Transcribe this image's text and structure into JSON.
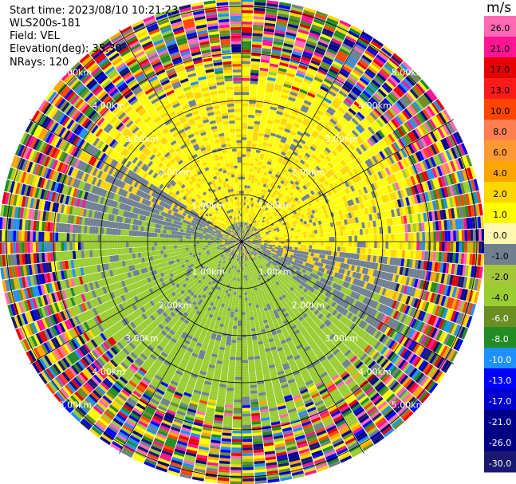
{
  "info": {
    "start_time": "Start time: 2023/08/10 10:21:23",
    "instrument": "WLS200s-181",
    "field": "Field: VEL",
    "elevation": "Elevation(deg): 35.30",
    "nrays": "NRays: 120"
  },
  "colorbar": {
    "unit": "m/s",
    "ticks": [
      "26.0",
      "21.0",
      "17.0",
      "13.0",
      "10.0",
      "8.0",
      "6.0",
      "4.0",
      "2.0",
      "1.0",
      "0.0",
      "-1.0",
      "-2.0",
      "-4.0",
      "-6.0",
      "-8.0",
      "-10.0",
      "-13.0",
      "-17.0",
      "-21.0",
      "-26.0",
      "-30.0"
    ],
    "colors": [
      "#ff69b4",
      "#ff1493",
      "#e60000",
      "#ff1a1a",
      "#ff4500",
      "#ff7f50",
      "#ff9933",
      "#ffa500",
      "#ffd700",
      "#ffff00",
      "#fff8b0",
      "#708090",
      "#a4c639",
      "#9acd32",
      "#6b8e23",
      "#228b22",
      "#1e90ff",
      "#0000ff",
      "#0000cd",
      "#00008b",
      "#000080",
      "#191970"
    ]
  },
  "chart_data": {
    "type": "heatmap",
    "projection": "polar PPI",
    "n_rays": 120,
    "range_rings_km": [
      1.0,
      2.0,
      3.0,
      4.0,
      5.0
    ],
    "ring_labels": [
      "1.00km",
      "2.00km",
      "3.00km",
      "4.00km",
      "5.00km"
    ],
    "max_range_km": 5.2,
    "field": "VEL",
    "units": "m/s"
  }
}
